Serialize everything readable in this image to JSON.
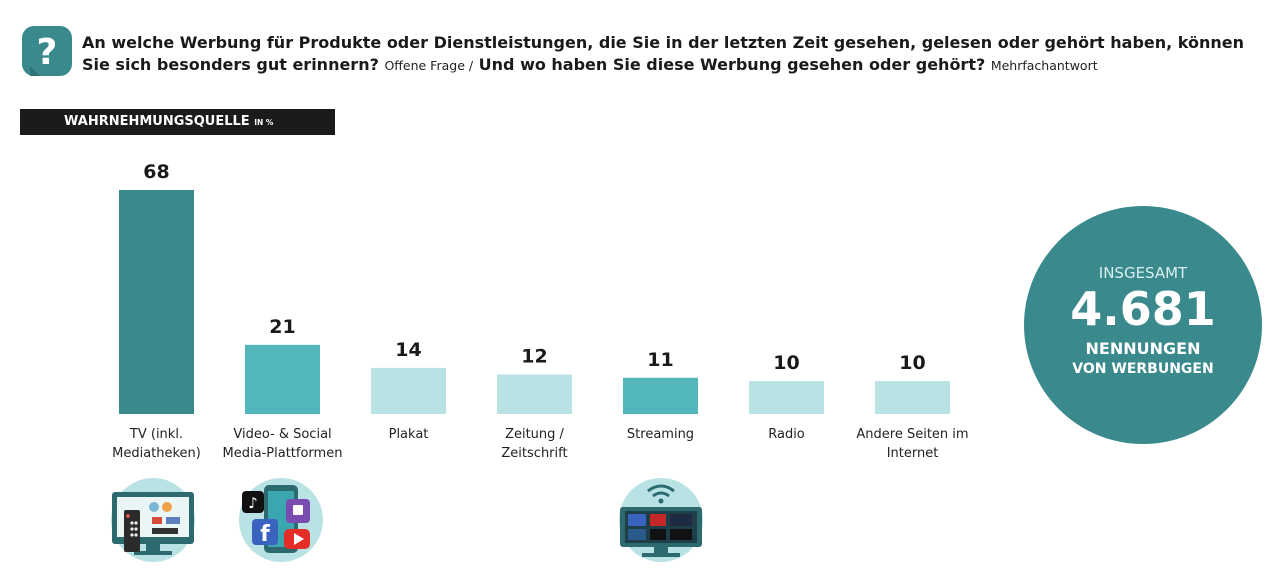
{
  "header": {
    "question_main": "An welche Werbung für Produkte oder Dienstleistungen, die Sie in der letzten Zeit gesehen, gelesen oder gehört haben, können Sie sich besonders gut erinnern?",
    "question_type_1": "Offene Frage /",
    "question_follow": "Und wo haben Sie diese Werbung gesehen oder gehört?",
    "question_type_2": "Mehrfachantwort"
  },
  "source_band": {
    "label": "WAHRNEHMUNGSQUELLE",
    "unit": "IN %"
  },
  "chart_data": {
    "type": "bar",
    "title": "WAHRNEHMUNGSQUELLE",
    "unit": "IN %",
    "categories": [
      "TV (inkl.\nMediatheken)",
      "Video- & Social\nMedia-Plattformen",
      "Plakat",
      "Zeitung /\nZeitschrift",
      "Streaming",
      "Radio",
      "Andere Seiten im\nInternet"
    ],
    "values": [
      68,
      21,
      14,
      12,
      11,
      10,
      10
    ],
    "bar_colors": [
      "#3a8a8d",
      "#52b6ba",
      "#b8e2e4",
      "#b8e2e4",
      "#52b6ba",
      "#b8e2e4",
      "#b8e2e4"
    ],
    "ylim": [
      0,
      68
    ]
  },
  "summary": {
    "line1": "INSGESAMT",
    "total": "4.681",
    "line2": "NENNUNGEN",
    "line3": "VON WERBUNGEN"
  },
  "icons": [
    {
      "name": "tv-icon",
      "category": "TV (inkl. Mediatheken)"
    },
    {
      "name": "social-media-icon",
      "category": "Video- & Social Media-Plattformen"
    },
    {
      "name": "streaming-icon",
      "category": "Streaming"
    }
  ],
  "colors": {
    "dark_teal": "#3a8a8d",
    "mid_teal": "#52b6ba",
    "light_teal": "#b8e2e4",
    "band": "#1b1b1b"
  }
}
